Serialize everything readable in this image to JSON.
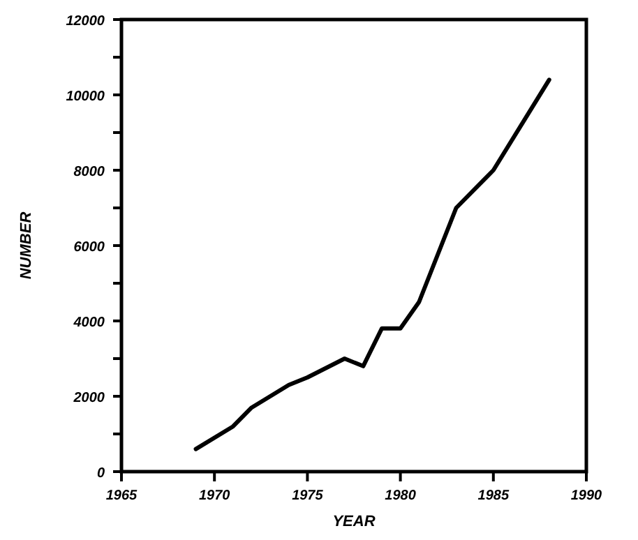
{
  "chart_data": {
    "type": "line",
    "xlabel": "YEAR",
    "ylabel": "NUMBER",
    "x": [
      1969,
      1971,
      1972,
      1974,
      1975,
      1977,
      1978,
      1979,
      1980,
      1981,
      1983,
      1985,
      1988
    ],
    "series": [
      {
        "color": "#000000",
        "values": [
          600,
          1200,
          1700,
          2300,
          2500,
          3000,
          2800,
          3800,
          3800,
          4500,
          7000,
          8000,
          10400
        ]
      }
    ],
    "xlim": [
      1965,
      1990
    ],
    "xticks": [
      1965,
      1970,
      1975,
      1980,
      1985,
      1990
    ],
    "ylim": [
      0,
      12000
    ],
    "yticks": [
      0,
      {
        "value": 1000,
        "label": null
      },
      2000,
      {
        "value": 3000,
        "label": null
      },
      4000,
      {
        "value": 5000,
        "label": null
      },
      6000,
      {
        "value": 7000,
        "label": null
      },
      8000,
      {
        "value": 9000,
        "label": null
      },
      10000,
      {
        "value": 11000,
        "label": null
      },
      12000
    ],
    "grid": false,
    "marker": "none",
    "line_style": "solid"
  }
}
